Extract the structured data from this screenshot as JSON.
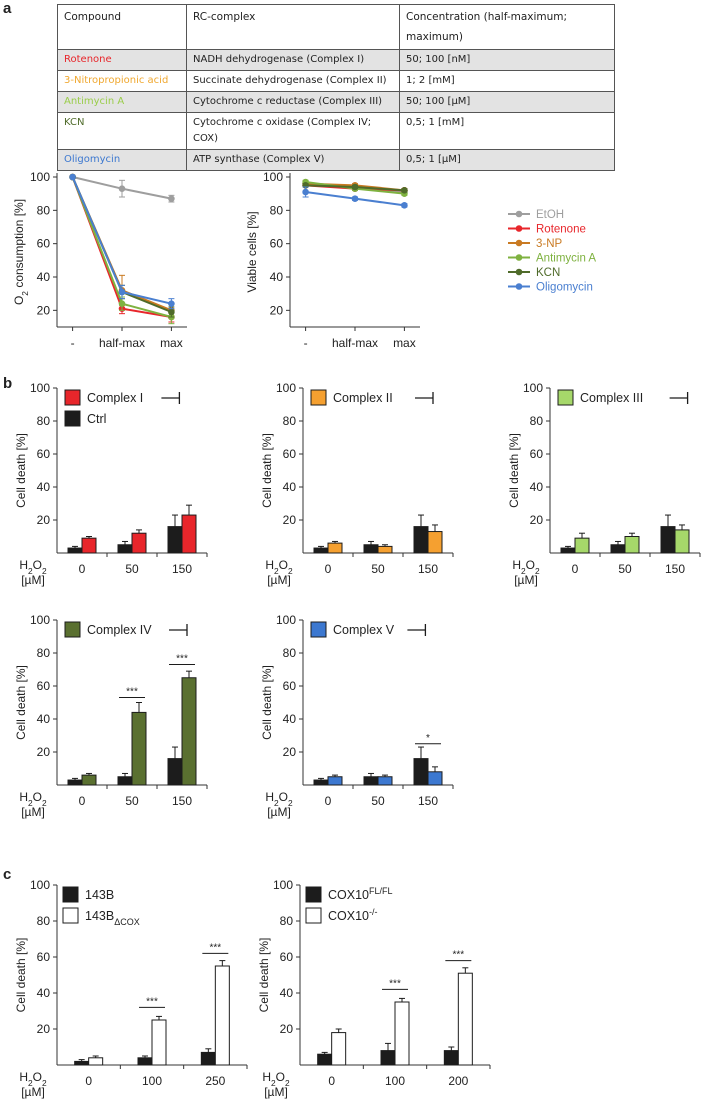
{
  "panels": {
    "a": "a",
    "b": "b",
    "c": "c"
  },
  "table": {
    "headers": [
      "Compound",
      "RC-complex",
      "Concentration (half-maximum; maximum)"
    ],
    "rows": [
      {
        "compound": "Rotenone",
        "color": "#e8262b",
        "complex": "NADH dehydrogenase (Complex I)",
        "conc": "50; 100 [nM]"
      },
      {
        "compound": "3-Nitropropionic acid",
        "color": "#f0a830",
        "complex": "Succinate dehydrogenase (Complex II)",
        "conc": "1; 2 [mM]"
      },
      {
        "compound": "Antimycin A",
        "color": "#9acd4a",
        "complex": "Cytochrome c reductase (Complex III)",
        "conc": "50; 100 [µM]"
      },
      {
        "compound": "KCN",
        "color": "#4f6b2a",
        "complex": "Cytochrome c oxidase (Complex IV; COX)",
        "conc": "0,5; 1 [mM]"
      },
      {
        "compound": "Oligomycin",
        "color": "#3c78d0",
        "complex": "ATP synthase (Complex V)",
        "conc": "0,5; 1 [µM]"
      }
    ]
  },
  "legend_a": [
    {
      "label": "EtOH",
      "color": "#9e9e9e"
    },
    {
      "label": "Rotenone",
      "color": "#e8262b"
    },
    {
      "label": "3-NP",
      "color": "#c97a22"
    },
    {
      "label": "Antimycin A",
      "color": "#7fb240"
    },
    {
      "label": "KCN",
      "color": "#4f6b2a"
    },
    {
      "label": "Oligomycin",
      "color": "#4a7fd0"
    }
  ],
  "chart_data": [
    {
      "id": "a1",
      "type": "line",
      "ylabel": "O2 consumption [%]",
      "categories": [
        "-",
        "half-max",
        "max"
      ],
      "ylim": [
        10,
        100
      ],
      "yticks": [
        20,
        40,
        60,
        80,
        100
      ],
      "series": [
        {
          "name": "EtOH",
          "color": "#9e9e9e",
          "values": [
            100,
            93,
            87
          ],
          "err": [
            0,
            5,
            2
          ]
        },
        {
          "name": "Rotenone",
          "color": "#e8262b",
          "values": [
            100,
            21,
            16
          ],
          "err": [
            0,
            3,
            3
          ]
        },
        {
          "name": "3-NP",
          "color": "#c97a22",
          "values": [
            100,
            32,
            20
          ],
          "err": [
            0,
            9,
            4
          ]
        },
        {
          "name": "Antimycin A",
          "color": "#7fb240",
          "values": [
            100,
            24,
            16
          ],
          "err": [
            0,
            4,
            4
          ]
        },
        {
          "name": "KCN",
          "color": "#4f6b2a",
          "values": [
            100,
            31,
            19
          ],
          "err": [
            0,
            4,
            3
          ]
        },
        {
          "name": "Oligomycin",
          "color": "#4a7fd0",
          "values": [
            100,
            31,
            24
          ],
          "err": [
            0,
            4,
            3
          ]
        }
      ]
    },
    {
      "id": "a2",
      "type": "line",
      "ylabel": "Viable cells [%]",
      "categories": [
        "-",
        "half-max",
        "max"
      ],
      "ylim": [
        10,
        100
      ],
      "yticks": [
        20,
        40,
        60,
        80,
        100
      ],
      "series": [
        {
          "name": "EtOH",
          "color": "#9e9e9e",
          "values": [
            96,
            94,
            91
          ],
          "err": [
            1,
            1,
            1
          ]
        },
        {
          "name": "Rotenone",
          "color": "#e8262b",
          "values": [
            95,
            93,
            92
          ],
          "err": [
            1,
            1,
            1
          ]
        },
        {
          "name": "3-NP",
          "color": "#c97a22",
          "values": [
            96,
            95,
            92
          ],
          "err": [
            1,
            1,
            1
          ]
        },
        {
          "name": "Antimycin A",
          "color": "#7fb240",
          "values": [
            97,
            93,
            90
          ],
          "err": [
            1,
            1,
            1
          ]
        },
        {
          "name": "KCN",
          "color": "#4f6b2a",
          "values": [
            95,
            94,
            92
          ],
          "err": [
            1,
            1,
            1
          ]
        },
        {
          "name": "Oligomycin",
          "color": "#4a7fd0",
          "values": [
            91,
            87,
            83
          ],
          "err": [
            3,
            1,
            1
          ]
        }
      ]
    },
    {
      "id": "b1",
      "type": "bar",
      "ylabel": "Cell death [%]",
      "ylim": [
        0,
        100
      ],
      "yticks": [
        20,
        40,
        60,
        80,
        100
      ],
      "xlabel": "H2O2 [µM]",
      "categories": [
        "0",
        "50",
        "150"
      ],
      "series": [
        {
          "name": "Ctrl",
          "color": "#1c1c1c",
          "values": [
            3,
            5,
            16
          ],
          "err": [
            1,
            2,
            7
          ]
        },
        {
          "name": "Complex I",
          "color": "#e8262b",
          "values": [
            9,
            12,
            23
          ],
          "err": [
            1,
            2,
            6
          ]
        }
      ],
      "legend": [
        {
          "label": "Complex I",
          "color": "#e8262b"
        },
        {
          "label": "Ctrl",
          "color": "#1c1c1c"
        }
      ],
      "sig": []
    },
    {
      "id": "b2",
      "type": "bar",
      "ylabel": "Cell death [%]",
      "ylim": [
        0,
        100
      ],
      "yticks": [
        20,
        40,
        60,
        80,
        100
      ],
      "xlabel": "H2O2 [µM]",
      "categories": [
        "0",
        "50",
        "150"
      ],
      "series": [
        {
          "name": "Ctrl",
          "color": "#1c1c1c",
          "values": [
            3,
            5,
            16
          ],
          "err": [
            1,
            2,
            7
          ]
        },
        {
          "name": "Complex II",
          "color": "#f5a030",
          "values": [
            6,
            4,
            13
          ],
          "err": [
            1,
            1,
            4
          ]
        }
      ],
      "legend": [
        {
          "label": "Complex II",
          "color": "#f5a030"
        }
      ],
      "sig": []
    },
    {
      "id": "b3",
      "type": "bar",
      "ylabel": "Cell death [%]",
      "ylim": [
        0,
        100
      ],
      "yticks": [
        20,
        40,
        60,
        80,
        100
      ],
      "xlabel": "H2O2 [µM]",
      "categories": [
        "0",
        "50",
        "150"
      ],
      "series": [
        {
          "name": "Ctrl",
          "color": "#1c1c1c",
          "values": [
            3,
            5,
            16
          ],
          "err": [
            1,
            2,
            7
          ]
        },
        {
          "name": "Complex III",
          "color": "#a6d86a",
          "values": [
            9,
            10,
            14
          ],
          "err": [
            3,
            2,
            3
          ]
        }
      ],
      "legend": [
        {
          "label": "Complex III",
          "color": "#a6d86a"
        }
      ],
      "sig": []
    },
    {
      "id": "b4",
      "type": "bar",
      "ylabel": "Cell death [%]",
      "ylim": [
        0,
        100
      ],
      "yticks": [
        20,
        40,
        60,
        80,
        100
      ],
      "xlabel": "H2O2 [µM]",
      "categories": [
        "0",
        "50",
        "150"
      ],
      "series": [
        {
          "name": "Ctrl",
          "color": "#1c1c1c",
          "values": [
            3,
            5,
            16
          ],
          "err": [
            1,
            2,
            7
          ]
        },
        {
          "name": "Complex IV",
          "color": "#5a7030",
          "values": [
            6,
            44,
            65
          ],
          "err": [
            1,
            6,
            4
          ]
        }
      ],
      "legend": [
        {
          "label": "Complex IV",
          "color": "#5a7030"
        }
      ],
      "sig": [
        {
          "cat": 1,
          "y": 53,
          "label": "***"
        },
        {
          "cat": 2,
          "y": 73,
          "label": "***"
        }
      ]
    },
    {
      "id": "b5",
      "type": "bar",
      "ylabel": "Cell death [%]",
      "ylim": [
        0,
        100
      ],
      "yticks": [
        20,
        40,
        60,
        80,
        100
      ],
      "xlabel": "H2O2 [µM]",
      "categories": [
        "0",
        "50",
        "150"
      ],
      "series": [
        {
          "name": "Ctrl",
          "color": "#1c1c1c",
          "values": [
            3,
            5,
            16
          ],
          "err": [
            1,
            2,
            7
          ]
        },
        {
          "name": "Complex V",
          "color": "#3c78d0",
          "values": [
            5,
            5,
            8
          ],
          "err": [
            1,
            1,
            3
          ]
        }
      ],
      "legend": [
        {
          "label": "Complex V",
          "color": "#3c78d0"
        }
      ],
      "sig": [
        {
          "cat": 2,
          "y": 25,
          "label": "*"
        }
      ]
    },
    {
      "id": "c1",
      "type": "bar",
      "ylabel": "Cell death [%]",
      "ylim": [
        0,
        100
      ],
      "yticks": [
        20,
        40,
        60,
        80,
        100
      ],
      "xlabel": "H2O2 [µM]",
      "categories": [
        "0",
        "100",
        "250"
      ],
      "series": [
        {
          "name": "143B",
          "color": "#1c1c1c",
          "values": [
            2,
            4,
            7
          ],
          "err": [
            1,
            1,
            2
          ]
        },
        {
          "name": "143BΔCOX",
          "color": "#ffffff",
          "values": [
            4,
            25,
            55
          ],
          "err": [
            1,
            2,
            3
          ]
        }
      ],
      "legend": [
        {
          "label": "143B",
          "color": "#1c1c1c"
        },
        {
          "label": "143BΔCOX",
          "color": "#ffffff"
        }
      ],
      "sig": [
        {
          "cat": 1,
          "y": 32,
          "label": "***"
        },
        {
          "cat": 2,
          "y": 62,
          "label": "***"
        }
      ]
    },
    {
      "id": "c2",
      "type": "bar",
      "ylabel": "Cell death [%]",
      "ylim": [
        0,
        100
      ],
      "yticks": [
        20,
        40,
        60,
        80,
        100
      ],
      "xlabel": "H2O2 [µM]",
      "categories": [
        "0",
        "100",
        "200"
      ],
      "series": [
        {
          "name": "COX10FL/FL",
          "color": "#1c1c1c",
          "values": [
            6,
            8,
            8
          ],
          "err": [
            1,
            4,
            2
          ]
        },
        {
          "name": "COX10-/-",
          "color": "#ffffff",
          "values": [
            18,
            35,
            51
          ],
          "err": [
            2,
            2,
            3
          ]
        }
      ],
      "legend": [
        {
          "label": "COX10FL/FL",
          "color": "#1c1c1c"
        },
        {
          "label": "COX10-/-",
          "color": "#ffffff"
        }
      ],
      "sig": [
        {
          "cat": 1,
          "y": 42,
          "label": "***"
        },
        {
          "cat": 2,
          "y": 58,
          "label": "***"
        }
      ]
    }
  ]
}
